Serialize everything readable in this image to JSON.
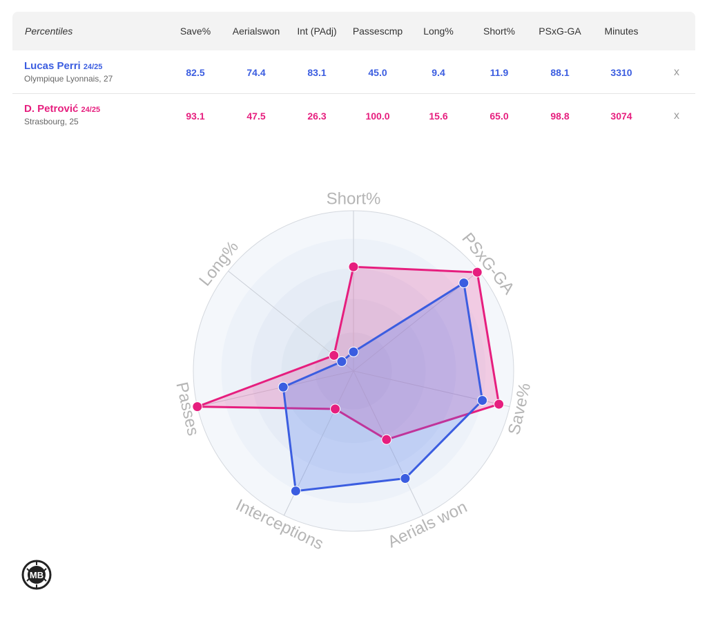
{
  "table": {
    "title": "Percentiles",
    "columns": [
      {
        "line1": "Save%",
        "line2": ""
      },
      {
        "line1": "Aerials",
        "line2": "won"
      },
      {
        "line1": "Int (PAdj)",
        "line2": ""
      },
      {
        "line1": "Passes",
        "line2": "cmp"
      },
      {
        "line1": "Long%",
        "line2": ""
      },
      {
        "line1": "Short%",
        "line2": ""
      },
      {
        "line1": "PSxG-GA",
        "line2": ""
      },
      {
        "line1": "Minutes",
        "line2": ""
      }
    ],
    "remove_label": "x"
  },
  "players": [
    {
      "name": "Lucas Perri",
      "season": "24/25",
      "club": "Olympique Lyonnais, 27",
      "values": [
        "82.5",
        "74.4",
        "83.1",
        "45.0",
        "9.4",
        "11.9",
        "88.1",
        "3310"
      ],
      "color": "#3b5de0"
    },
    {
      "name": "D. Petrović",
      "season": "24/25",
      "club": "Strasbourg, 25",
      "values": [
        "93.1",
        "47.5",
        "26.3",
        "100.0",
        "15.6",
        "65.0",
        "98.8",
        "3074"
      ],
      "color": "#e61e7e"
    }
  ],
  "chart_data": {
    "type": "radar",
    "axes": [
      "Short%",
      "PSxG-GA",
      "Save%",
      "Aerials won",
      "Interceptions",
      "Passes",
      "Long%"
    ],
    "range": [
      0,
      100
    ],
    "series": [
      {
        "name": "Lucas Perri",
        "color": "#3b5de0",
        "values": [
          11.9,
          88.1,
          82.5,
          74.4,
          83.1,
          45.0,
          9.4
        ]
      },
      {
        "name": "D. Petrović",
        "color": "#e61e7e",
        "values": [
          65.0,
          98.8,
          93.1,
          47.5,
          26.3,
          100.0,
          15.6
        ]
      }
    ]
  },
  "logo": {
    "text": "MB"
  }
}
